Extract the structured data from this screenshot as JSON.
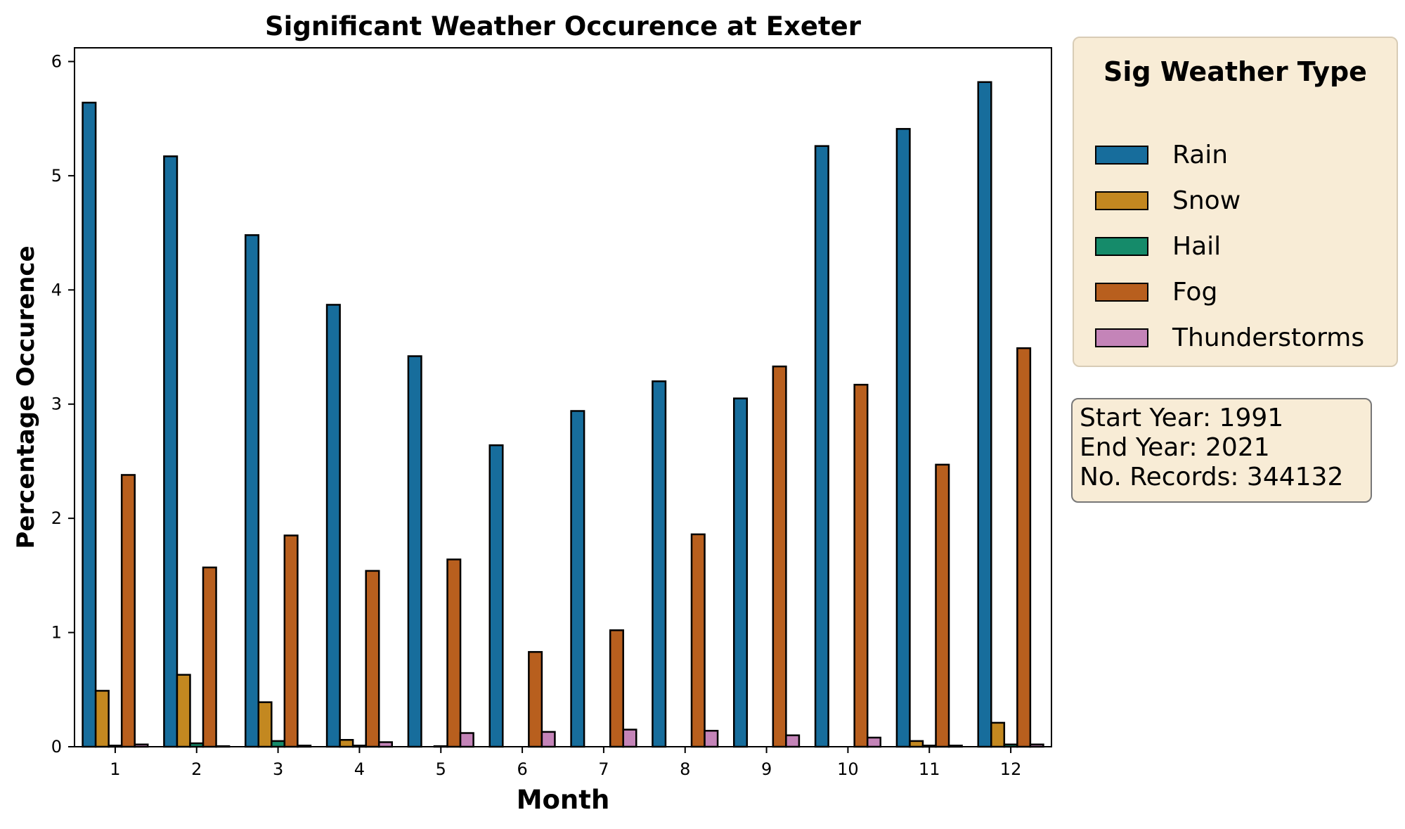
{
  "chart_data": {
    "type": "bar",
    "title": "Significant Weather Occurence at Exeter",
    "xlabel": "Month",
    "ylabel": "Percentage Occurence",
    "categories": [
      "1",
      "2",
      "3",
      "4",
      "5",
      "6",
      "7",
      "8",
      "9",
      "10",
      "11",
      "12"
    ],
    "ylim": [
      0,
      6.12
    ],
    "yticks": [
      0,
      1,
      2,
      3,
      4,
      5,
      6
    ],
    "grid": false,
    "legend_placement": "outside-right",
    "legend_title": "Sig Weather Type",
    "series": [
      {
        "name": "Rain",
        "color": "#176d9c",
        "values": [
          5.64,
          5.17,
          4.48,
          3.87,
          3.42,
          2.64,
          2.94,
          3.2,
          3.05,
          5.26,
          5.41,
          5.82
        ]
      },
      {
        "name": "Snow",
        "color": "#c38820",
        "values": [
          0.49,
          0.63,
          0.39,
          0.06,
          0,
          0,
          0,
          0,
          0,
          0,
          0.05,
          0.21
        ]
      },
      {
        "name": "Hail",
        "color": "#158b6a",
        "values": [
          0.01,
          0.03,
          0.05,
          0.01,
          0.005,
          0,
          0,
          0,
          0,
          0,
          0.01,
          0.02
        ]
      },
      {
        "name": "Fog",
        "color": "#b85f1e",
        "values": [
          2.38,
          1.57,
          1.85,
          1.54,
          1.64,
          0.83,
          1.02,
          1.86,
          3.33,
          3.17,
          2.47,
          3.49
        ]
      },
      {
        "name": "Thunderstorms",
        "color": "#c484b8",
        "values": [
          0.02,
          0.005,
          0.01,
          0.04,
          0.12,
          0.13,
          0.15,
          0.14,
          0.1,
          0.08,
          0.01,
          0.02
        ]
      }
    ]
  },
  "info": {
    "start": "Start Year: 1991",
    "end": "End Year: 2021",
    "records": "No. Records: 344132"
  }
}
